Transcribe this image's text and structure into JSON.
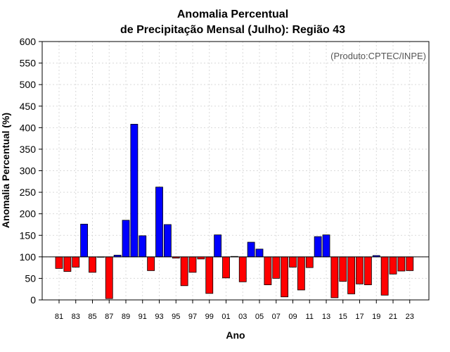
{
  "chart_data": {
    "type": "bar",
    "title_line1": "Anomalia Percentual",
    "title_line2": "de Precipitação Mensal (Julho): Região 43",
    "xlabel": "Ano",
    "ylabel": "Anomalia Percentual (%)",
    "credit": "(Produto:CPTEC/INPE)",
    "ylim": [
      0,
      600
    ],
    "yticks": [
      0,
      50,
      100,
      150,
      200,
      250,
      300,
      350,
      400,
      450,
      500,
      550,
      600
    ],
    "baseline": 100,
    "colors": {
      "above": "#0000ff",
      "below": "#ff0000",
      "edge": "#000000",
      "grid": "#d9d9d9"
    },
    "categories": [
      "81",
      "82",
      "83",
      "84",
      "85",
      "86",
      "87",
      "88",
      "89",
      "90",
      "91",
      "92",
      "93",
      "94",
      "95",
      "96",
      "97",
      "98",
      "99",
      "00",
      "01",
      "02",
      "03",
      "04",
      "05",
      "06",
      "07",
      "08",
      "09",
      "10",
      "11",
      "12",
      "13",
      "14",
      "15",
      "16",
      "17",
      "18",
      "19",
      "20",
      "21",
      "22",
      "23"
    ],
    "x_tick_labels": [
      "81",
      "83",
      "85",
      "87",
      "89",
      "91",
      "93",
      "95",
      "97",
      "99",
      "01",
      "03",
      "05",
      "07",
      "09",
      "11",
      "13",
      "15",
      "17",
      "19",
      "21",
      "23"
    ],
    "values": [
      73,
      66,
      76,
      176,
      64,
      99,
      3,
      104,
      185,
      408,
      149,
      68,
      262,
      175,
      97,
      33,
      64,
      95,
      15,
      151,
      51,
      101,
      42,
      134,
      118,
      35,
      50,
      7,
      76,
      23,
      75,
      147,
      151,
      5,
      43,
      14,
      37,
      35,
      103,
      11,
      60,
      67,
      68
    ]
  }
}
